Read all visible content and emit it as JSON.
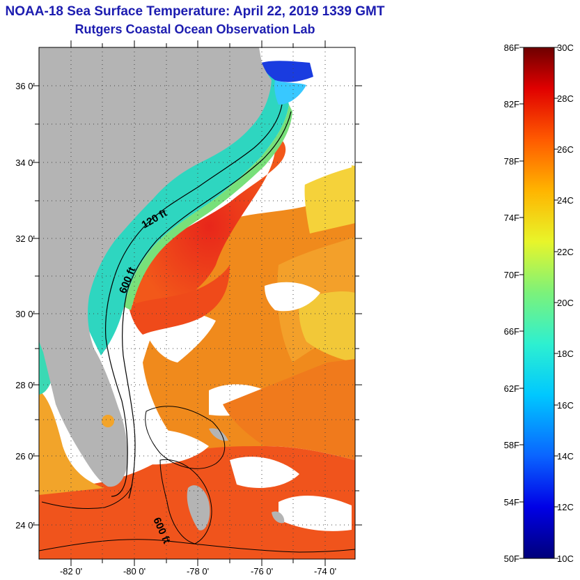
{
  "header": {
    "title": "NOAA-18 Sea Surface Temperature:  April 22, 2019 1339 GMT",
    "subtitle": "Rutgers Coastal Ocean Observation Lab"
  },
  "map": {
    "latitude_labels": [
      "36 0'",
      "34 0'",
      "32 0'",
      "30 0'",
      "28 0'",
      "26 0'",
      "24 0'"
    ],
    "longitude_labels": [
      "-82 0'",
      "-80 0'",
      "-78 0'",
      "-76 0'",
      "-74 0'"
    ],
    "contour_labels": [
      "120 ft",
      "600 ft",
      "600 ft"
    ],
    "colors": {
      "land": "#b4b4b4",
      "cloud": "#ffffff",
      "cold_shelf": "#2ed6c0",
      "warm_stream": "#f2401a",
      "mid_ocean": "#f08a1c"
    }
  },
  "colorbar": {
    "fahrenheit_labels": [
      "86F",
      "82F",
      "78F",
      "74F",
      "70F",
      "66F",
      "62F",
      "58F",
      "54F",
      "50F"
    ],
    "celsius_labels": [
      "30C",
      "28C",
      "26C",
      "24C",
      "22C",
      "20C",
      "18C",
      "16C",
      "14C",
      "12C",
      "10C"
    ],
    "gradient": [
      "#00007a",
      "#0000e6",
      "#0a64ff",
      "#00c8ff",
      "#2ef0d0",
      "#7cf27a",
      "#e8f52a",
      "#ffb400",
      "#ff5a00",
      "#e00000",
      "#6e0000"
    ]
  }
}
